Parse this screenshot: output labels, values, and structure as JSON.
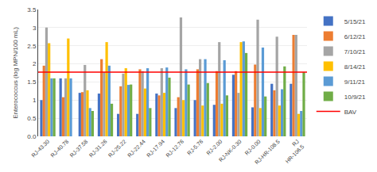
{
  "chart_data": {
    "type": "bar",
    "categories": [
      "RJ-43.30",
      "RJ-40.78",
      "RJ-37.58",
      "RJ-31.26",
      "RJ-25.22",
      "RJ-22.44",
      "RJ-17.94",
      "RJ-12.76",
      "RJ-5.76",
      "RJ-2.00",
      "RJ-NK-0.30",
      "RJ-0.00",
      "RJ-HR-108.5",
      "RJ\nHR-106.5"
    ],
    "series": [
      {
        "name": "5/15/21",
        "color": "#4472c4",
        "values": [
          1.0,
          1.6,
          1.2,
          1.18,
          0.62,
          0.62,
          1.18,
          0.78,
          1.0,
          0.87,
          1.7,
          0.8,
          1.45,
          1.45
        ]
      },
      {
        "name": "6/12/21",
        "color": "#ed7d31",
        "values": [
          1.95,
          1.08,
          1.22,
          2.13,
          1.38,
          1.85,
          1.13,
          1.08,
          1.85,
          1.8,
          1.8,
          1.98,
          1.27,
          2.8
        ]
      },
      {
        "name": "7/10/21",
        "color": "#a5a5a5",
        "values": [
          3.0,
          1.6,
          1.97,
          1.77,
          1.73,
          1.8,
          1.88,
          3.28,
          2.13,
          2.6,
          1.2,
          3.22,
          2.75,
          2.8
        ]
      },
      {
        "name": "8/14/21",
        "color": "#ffc000",
        "values": [
          2.57,
          2.7,
          1.27,
          2.6,
          1.88,
          1.32,
          1.2,
          1.0,
          0.85,
          0.9,
          2.6,
          0.78,
          0.85,
          0.62
        ]
      },
      {
        "name": "9/11/21",
        "color": "#5b9bd5",
        "values": [
          1.6,
          1.6,
          0.78,
          1.95,
          1.42,
          1.88,
          1.9,
          1.85,
          2.13,
          2.1,
          2.62,
          2.45,
          1.3,
          0.7
        ]
      },
      {
        "name": "10/9/21",
        "color": "#70ad47",
        "values": [
          1.6,
          0.0,
          0.7,
          0.9,
          1.43,
          0.78,
          1.62,
          1.43,
          1.47,
          1.13,
          2.3,
          1.1,
          1.93,
          1.77
        ]
      }
    ],
    "hline": {
      "name": "BAV",
      "value": 1.77,
      "color": "#ff0000"
    },
    "ylabel": "Enterococcus (log MPN/100 mL)",
    "ylim": [
      0.0,
      3.5
    ],
    "yticks": [
      {
        "value": 0.0,
        "label": "0.0"
      },
      0.5,
      1,
      1.5,
      2,
      2.5,
      3,
      3.5
    ],
    "grid": true,
    "legend": "upper right"
  }
}
